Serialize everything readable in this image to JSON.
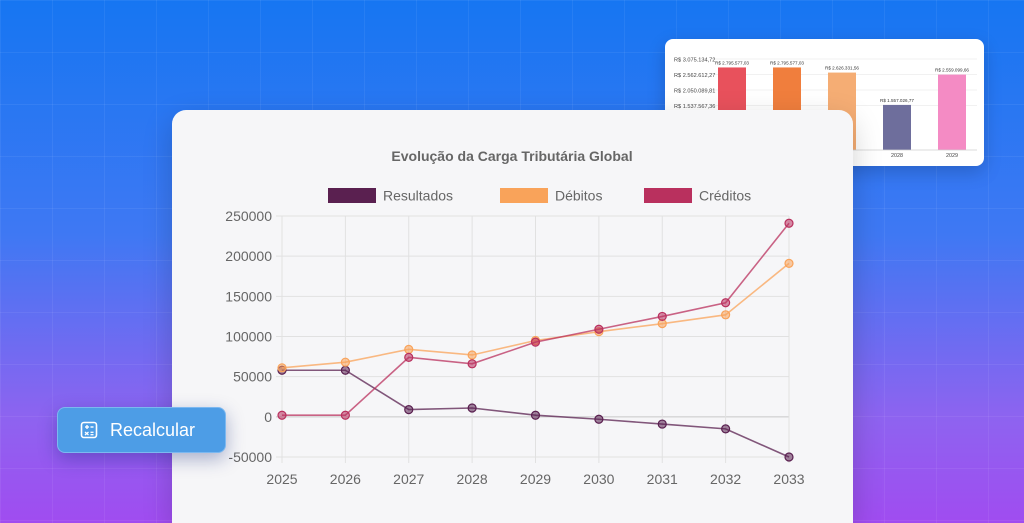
{
  "recalc_button": {
    "label": "Recalcular",
    "icon": "calculator-icon"
  },
  "colors": {
    "resultados": "#5a2050",
    "debitos": "#f9a35a",
    "creditos": "#b9305e",
    "bg_top": "#1676f2",
    "bg_bottom": "#a04cf0"
  },
  "chart_data": [
    {
      "type": "line",
      "title": "Evolução da Carga Tributária Global",
      "legend_position": "top",
      "grid": true,
      "x": [
        "2025",
        "2026",
        "2027",
        "2028",
        "2029",
        "2030",
        "2031",
        "2032",
        "2033"
      ],
      "yticks": [
        "250000",
        "200000",
        "150000",
        "100000",
        "50000",
        "0",
        "-50000"
      ],
      "ylim": [
        -50000,
        250000
      ],
      "series": [
        {
          "name": "Resultados",
          "color": "#5a2050",
          "values": [
            58000,
            58000,
            9000,
            11000,
            2000,
            -3000,
            -9000,
            -15000,
            -50000
          ]
        },
        {
          "name": "Débitos",
          "color": "#f9a35a",
          "values": [
            61000,
            68000,
            84000,
            77000,
            95000,
            106000,
            116000,
            127000,
            191000
          ]
        },
        {
          "name": "Créditos",
          "color": "#b9305e",
          "values": [
            2000,
            2000,
            74000,
            66000,
            93000,
            109000,
            125000,
            142000,
            241000
          ]
        }
      ]
    },
    {
      "type": "bar",
      "yticks": [
        "R$ 3.075.134,72",
        "R$ 2.562.612,27",
        "R$ 2.050.089,81",
        "R$ 1.537.567,36"
      ],
      "categories": [
        "",
        "",
        "",
        "2028",
        "2029"
      ],
      "data_labels": [
        "R$ 2.795.577,03",
        "R$ 2.795.577,03",
        "R$ 2.626.331,56",
        "R$ 1.557.026,77",
        "R$ 2.559.099,66"
      ],
      "values": [
        2795577.03,
        2795577.03,
        2626331.56,
        1557026.77,
        2559099.66
      ],
      "colors": [
        "#e8515c",
        "#f07e3d",
        "#f5ad74",
        "#6e6e9c",
        "#f48bc4"
      ]
    }
  ]
}
